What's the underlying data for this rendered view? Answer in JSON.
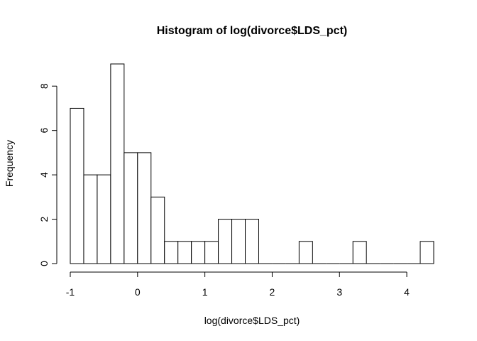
{
  "chart_data": {
    "type": "bar",
    "title": "Histogram of log(divorce$LDS_pct)",
    "xlabel": "log(divorce$LDS_pct)",
    "ylabel": "Frequency",
    "bin_width": 0.2,
    "bins_start": [
      -1.0,
      -0.8,
      -0.6,
      -0.4,
      -0.2,
      0.0,
      0.2,
      0.4,
      0.6,
      0.8,
      1.0,
      1.2,
      1.4,
      1.6,
      1.8,
      2.0,
      2.2,
      2.4,
      2.6,
      2.8,
      3.0,
      3.2,
      3.4,
      3.6,
      3.8,
      4.0,
      4.2
    ],
    "values": [
      7,
      4,
      4,
      9,
      5,
      5,
      3,
      1,
      1,
      1,
      1,
      2,
      2,
      2,
      0,
      0,
      0,
      1,
      0,
      0,
      0,
      1,
      0,
      0,
      0,
      0,
      1
    ],
    "xlim": [
      -1.0,
      4.4
    ],
    "ylim": [
      0,
      9
    ],
    "x_ticks": [
      -1,
      0,
      1,
      2,
      3,
      4
    ],
    "y_ticks": [
      0,
      2,
      4,
      6,
      8
    ],
    "grid": false,
    "bar_fill": "#ffffff",
    "bar_stroke": "#000000"
  }
}
